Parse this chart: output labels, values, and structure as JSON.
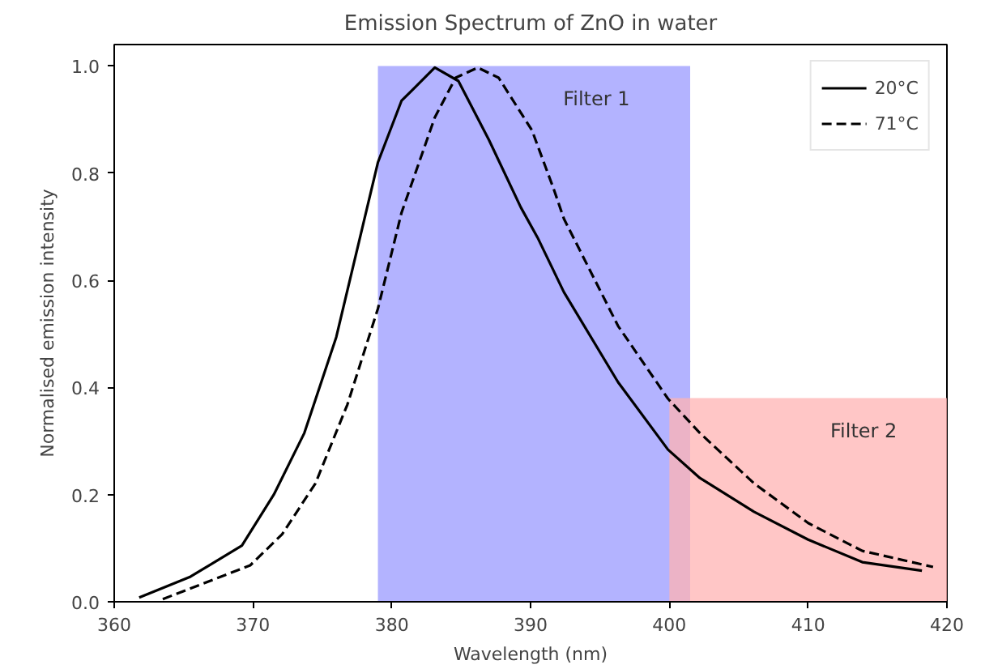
{
  "chart_data": {
    "type": "line",
    "title": "Emission Spectrum of ZnO in water",
    "xlabel": "Wavelength (nm)",
    "ylabel": "Normalised emission intensity",
    "xlim": [
      360,
      420
    ],
    "ylim": [
      0,
      1.04
    ],
    "xticks": [
      360,
      370,
      380,
      390,
      400,
      410,
      420
    ],
    "yticks": [
      {
        "value": 0,
        "label": "0.0"
      },
      0.2,
      0.4,
      0.6,
      0.8,
      {
        "value": 1,
        "label": "1.0"
      }
    ],
    "grid": false,
    "legend": "top right",
    "marker": "none",
    "series": [
      {
        "name": "Filter 1",
        "type": "area",
        "color": "#b3b3ff",
        "x": [
          379,
          401.5
        ],
        "values": [
          1.0,
          1.0
        ]
      },
      {
        "name": "Filter 2",
        "type": "area",
        "color": "#ffb3b3",
        "x": [
          400,
          420
        ],
        "values": [
          0.38,
          0.38
        ]
      },
      {
        "name": "20°C",
        "color": "#000000",
        "line_style": "solid",
        "x": [
          361.8,
          365.5,
          369.2,
          371.5,
          373.7,
          376,
          379,
          380.7,
          383.1,
          384.8,
          387,
          389.3,
          390.5,
          392.4,
          396.3,
          399.9,
          402.2,
          406.1,
          410,
          413.9,
          418.2
        ],
        "values": [
          0.008,
          0.047,
          0.105,
          0.2,
          0.315,
          0.494,
          0.82,
          0.935,
          0.997,
          0.972,
          0.862,
          0.736,
          0.68,
          0.578,
          0.41,
          0.284,
          0.231,
          0.168,
          0.116,
          0.074,
          0.058
        ]
      },
      {
        "name": "71°C",
        "color": "#000000",
        "line_style": "dashed",
        "x": [
          363.5,
          369.8,
          372.1,
          374.5,
          376.8,
          379,
          380.7,
          383.1,
          384.6,
          386.2,
          387.7,
          390.1,
          391.7,
          392.4,
          396.3,
          399.9,
          402.2,
          406.1,
          410,
          413.9,
          419
        ],
        "values": [
          0.005,
          0.068,
          0.126,
          0.221,
          0.368,
          0.547,
          0.726,
          0.904,
          0.978,
          0.997,
          0.978,
          0.88,
          0.768,
          0.715,
          0.515,
          0.379,
          0.315,
          0.221,
          0.147,
          0.095,
          0.065
        ]
      }
    ]
  }
}
